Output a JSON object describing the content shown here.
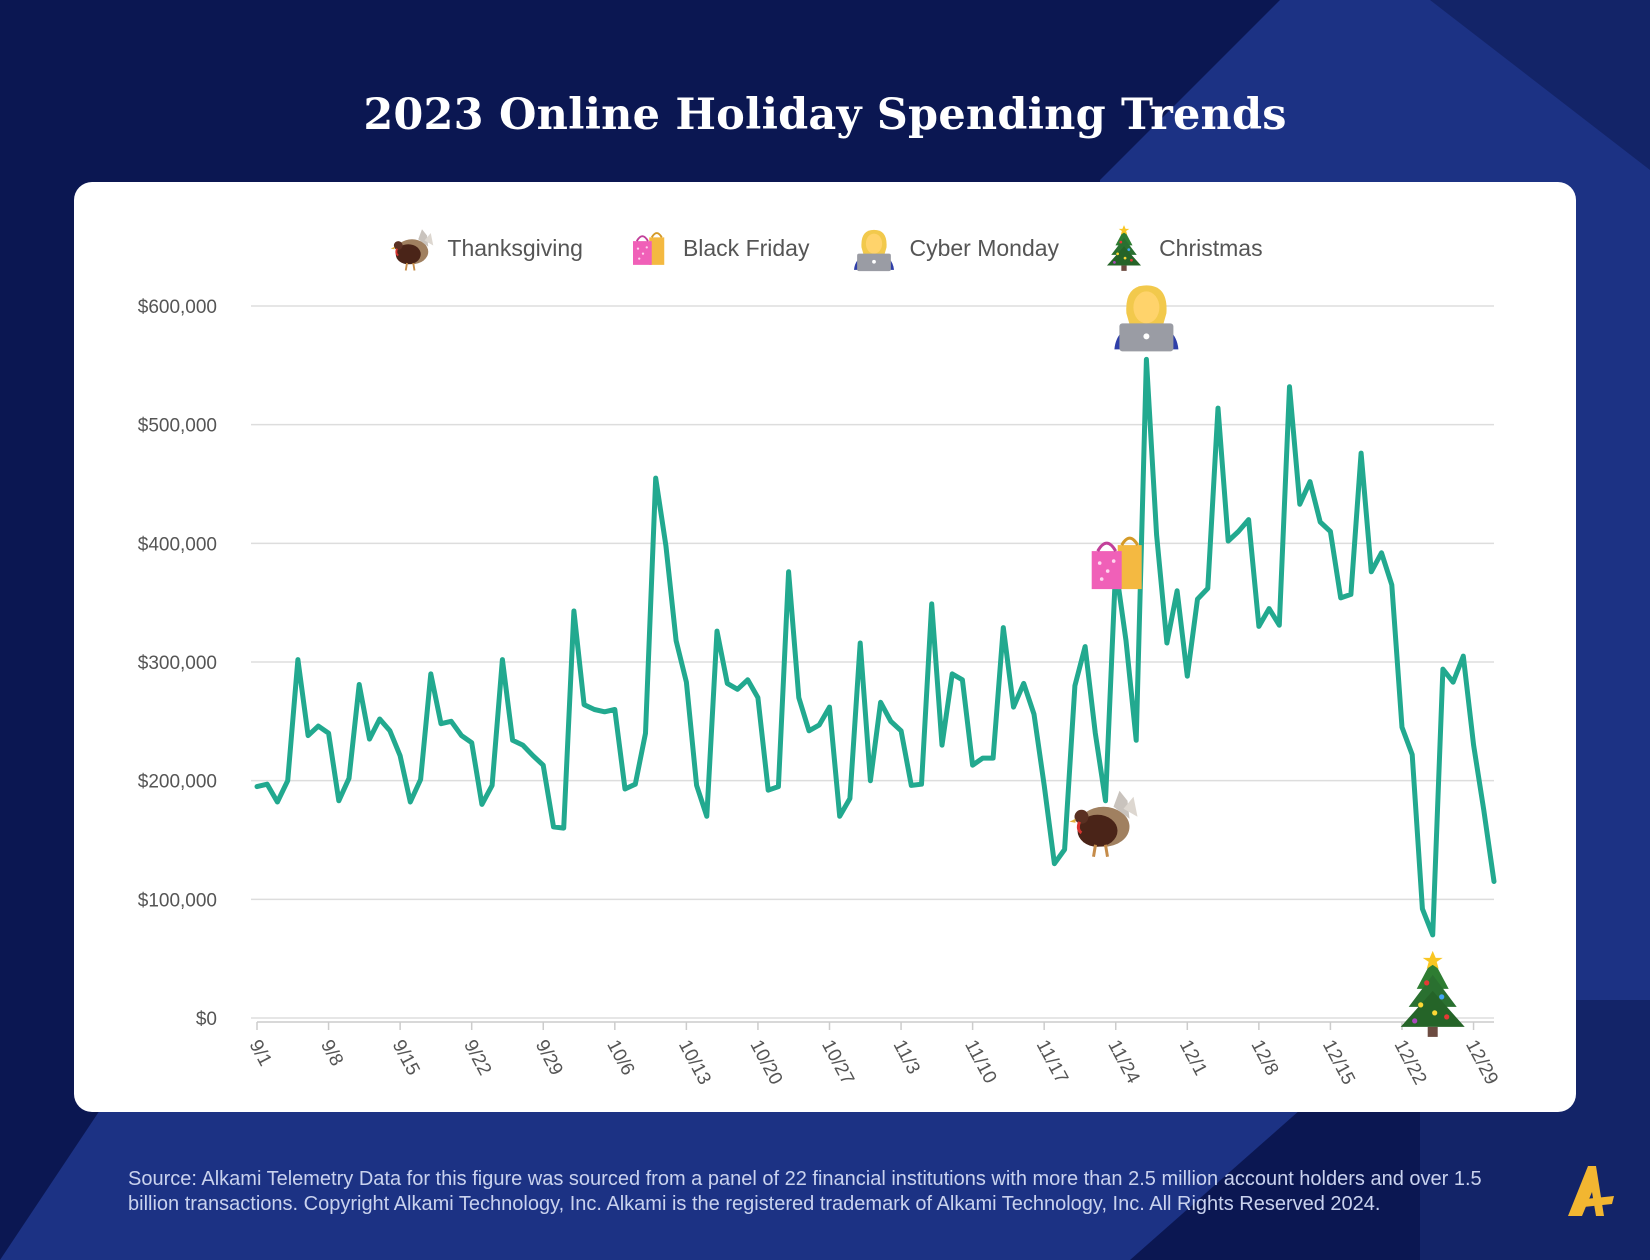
{
  "title": "2023 Online Holiday Spending Trends",
  "legend": {
    "items": [
      {
        "label": "Thanksgiving",
        "icon": "turkey-icon"
      },
      {
        "label": "Black Friday",
        "icon": "shopping-bags-icon"
      },
      {
        "label": "Cyber Monday",
        "icon": "woman-laptop-icon"
      },
      {
        "label": "Christmas",
        "icon": "christmas-tree-icon"
      }
    ]
  },
  "source": "Source:  Alkami Telemetry Data for this figure was sourced from a panel of 22 financial institutions with more than 2.5 million account holders and over 1.5 billion transactions. Copyright Alkami Technology, Inc. Alkami is the registered trademark of Alkami Technology, Inc. All Rights Reserved 2024.",
  "colors": {
    "background": "#0b1752",
    "stripe": "#1c3284",
    "line": "#22a98f",
    "grid": "#dddddd",
    "logo": "#f2b631"
  },
  "chart_data": {
    "type": "line",
    "title": "2023 Online Holiday Spending Trends",
    "xlabel": "",
    "ylabel": "",
    "start_date": "2023-09-01",
    "ylim": [
      0,
      600000
    ],
    "y_ticks": [
      0,
      100000,
      200000,
      300000,
      400000,
      500000,
      600000
    ],
    "y_tick_labels": [
      "$0",
      "$100,000",
      "$200,000",
      "$300,000",
      "$400,000",
      "$500,000",
      "$600,000"
    ],
    "x_tick_labels": [
      "9/1",
      "9/8",
      "9/15",
      "9/22",
      "9/29",
      "10/6",
      "10/13",
      "10/20",
      "10/27",
      "11/3",
      "11/10",
      "11/17",
      "11/24",
      "12/1",
      "12/8",
      "12/15",
      "12/22",
      "12/29"
    ],
    "grid": "horizontal",
    "legend_position": "top",
    "series": [
      {
        "values": [
          195000,
          197000,
          182000,
          200000,
          302000,
          238000,
          246000,
          240000,
          183000,
          202000,
          281000,
          235000,
          252000,
          242000,
          221000,
          182000,
          201000,
          290000,
          248000,
          250000,
          238000,
          232000,
          180000,
          196000,
          302000,
          234000,
          230000,
          221000,
          213000,
          161000,
          160000,
          343000,
          264000,
          260000,
          258000,
          260000,
          193000,
          197000,
          240000,
          455000,
          398000,
          318000,
          283000,
          196000,
          170000,
          326000,
          282000,
          277000,
          285000,
          270000,
          192000,
          195000,
          376000,
          270000,
          242000,
          247000,
          262000,
          170000,
          185000,
          316000,
          200000,
          266000,
          250000,
          242000,
          196000,
          197000,
          349000,
          230000,
          290000,
          285000,
          213000,
          219000,
          219000,
          329000,
          262000,
          282000,
          256000,
          196000,
          130000,
          142000,
          280000,
          313000,
          240000,
          183000,
          380000,
          318000,
          234000,
          555000,
          407000,
          316000,
          360000,
          288000,
          353000,
          362000,
          514000,
          402000,
          410000,
          420000,
          330000,
          345000,
          331000,
          532000,
          433000,
          452000,
          418000,
          410000,
          354000,
          357000,
          476000,
          376000,
          392000,
          365000,
          245000,
          222000,
          92000,
          70000,
          294000,
          283000,
          305000,
          230000,
          175000,
          115000
        ]
      }
    ],
    "annotations": [
      {
        "label": "Thanksgiving",
        "date": "11/23",
        "icon": "turkey-icon"
      },
      {
        "label": "Black Friday",
        "date": "11/24",
        "icon": "shopping-bags-icon"
      },
      {
        "label": "Cyber Monday",
        "date": "11/27",
        "icon": "woman-laptop-icon"
      },
      {
        "label": "Christmas",
        "date": "12/25",
        "icon": "christmas-tree-icon"
      }
    ]
  }
}
